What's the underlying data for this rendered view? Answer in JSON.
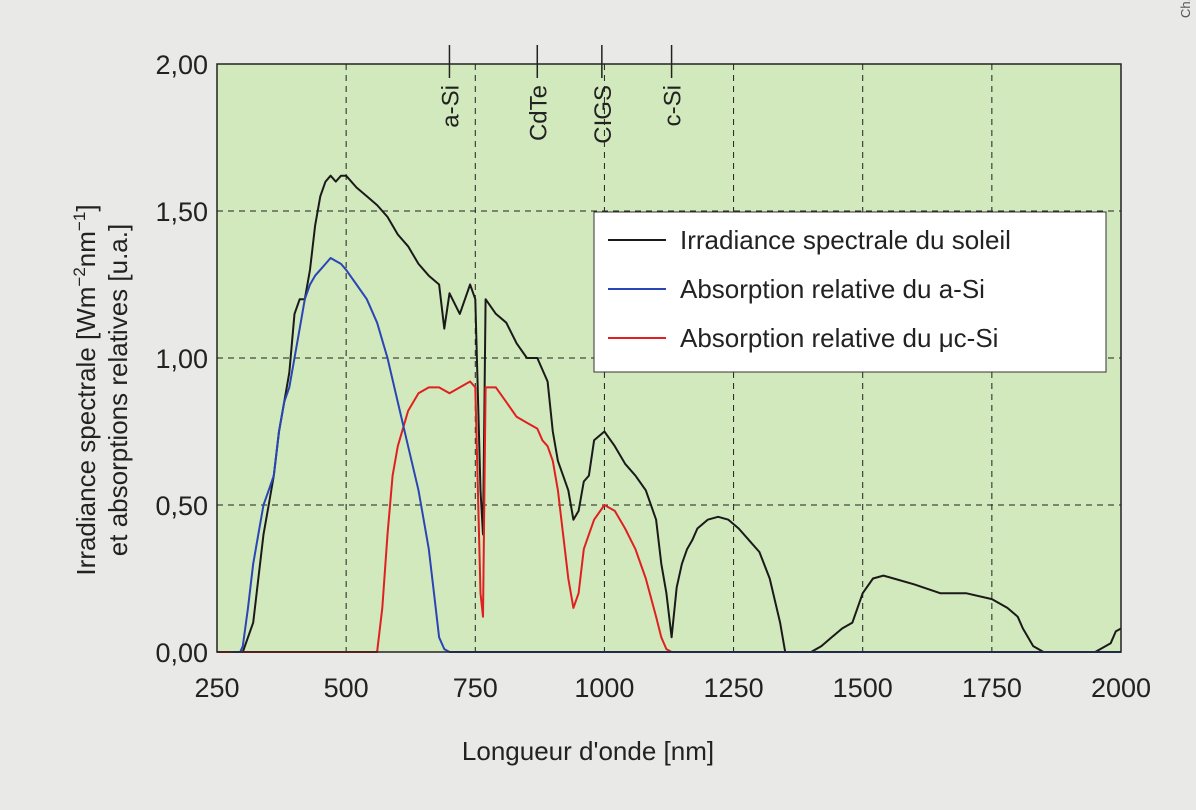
{
  "edge_text": "Ch. Elliott",
  "chart_data": {
    "type": "line",
    "xlabel": "Longueur d'onde [nm]",
    "ylabel_line1": "Irradiance spectrale [Wm",
    "ylabel_sup1": "−2",
    "ylabel_mid": "nm",
    "ylabel_sup2": "−1",
    "ylabel_end": "]",
    "ylabel_line2": "et absorptions relatives [u.a.]",
    "xlim": [
      250,
      2000
    ],
    "ylim": [
      0,
      2
    ],
    "x_ticks": [
      250,
      500,
      750,
      1000,
      1250,
      1500,
      1750,
      2000
    ],
    "x_tick_labels": [
      "250",
      "500",
      "750",
      "1000",
      "1250",
      "1500",
      "1750",
      "2000"
    ],
    "y_ticks": [
      0,
      0.5,
      1,
      1.5,
      2
    ],
    "y_tick_labels": [
      "0,00",
      "0,50",
      "1,00",
      "1,50",
      "2,00"
    ],
    "grid": true,
    "legend_position": "right",
    "plot_background": "#d2e8bd",
    "markers": [
      {
        "label": "a-Si",
        "x": 700
      },
      {
        "label": "CdTe",
        "x": 870
      },
      {
        "label": "CIGS",
        "x": 995
      },
      {
        "label": "c-Si",
        "x": 1130
      }
    ],
    "series": [
      {
        "name": "Irradiance spectrale du soleil",
        "color": "#1a1a1a",
        "x": [
          280,
          300,
          320,
          340,
          350,
          360,
          370,
          380,
          390,
          400,
          410,
          420,
          430,
          440,
          450,
          460,
          470,
          480,
          490,
          500,
          520,
          540,
          560,
          580,
          600,
          620,
          640,
          660,
          680,
          690,
          700,
          720,
          740,
          750,
          760,
          765,
          770,
          790,
          810,
          830,
          850,
          870,
          890,
          900,
          910,
          920,
          930,
          940,
          950,
          960,
          970,
          980,
          1000,
          1020,
          1040,
          1060,
          1080,
          1100,
          1110,
          1120,
          1130,
          1140,
          1150,
          1160,
          1170,
          1180,
          1200,
          1220,
          1240,
          1260,
          1280,
          1300,
          1320,
          1340,
          1350,
          1360,
          1380,
          1400,
          1420,
          1440,
          1460,
          1480,
          1500,
          1520,
          1540,
          1560,
          1600,
          1650,
          1700,
          1750,
          1780,
          1800,
          1810,
          1830,
          1850,
          1900,
          1950,
          1980,
          1990,
          2000
        ],
        "y": [
          0,
          0,
          0.1,
          0.4,
          0.5,
          0.6,
          0.75,
          0.85,
          0.95,
          1.15,
          1.2,
          1.2,
          1.3,
          1.45,
          1.55,
          1.6,
          1.62,
          1.6,
          1.62,
          1.62,
          1.58,
          1.55,
          1.52,
          1.48,
          1.42,
          1.38,
          1.32,
          1.28,
          1.25,
          1.1,
          1.22,
          1.15,
          1.25,
          1.2,
          0.55,
          0.4,
          1.2,
          1.15,
          1.12,
          1.05,
          1.0,
          1.0,
          0.92,
          0.75,
          0.65,
          0.6,
          0.55,
          0.45,
          0.48,
          0.58,
          0.6,
          0.72,
          0.75,
          0.7,
          0.64,
          0.6,
          0.55,
          0.45,
          0.3,
          0.2,
          0.05,
          0.22,
          0.3,
          0.35,
          0.38,
          0.42,
          0.45,
          0.46,
          0.45,
          0.42,
          0.38,
          0.34,
          0.25,
          0.1,
          0,
          0,
          0,
          0,
          0.02,
          0.05,
          0.08,
          0.1,
          0.2,
          0.25,
          0.26,
          0.25,
          0.23,
          0.2,
          0.2,
          0.18,
          0.15,
          0.12,
          0.08,
          0.02,
          0,
          0,
          0,
          0.03,
          0.07,
          0.08
        ]
      },
      {
        "name": "Absorption relative du a-Si",
        "color": "#2a46b5",
        "x": [
          280,
          295,
          300,
          310,
          320,
          330,
          340,
          350,
          360,
          370,
          380,
          390,
          400,
          410,
          420,
          430,
          440,
          450,
          460,
          470,
          480,
          490,
          500,
          520,
          540,
          560,
          580,
          600,
          620,
          640,
          660,
          670,
          680,
          690,
          700,
          720,
          760,
          800,
          900,
          1000,
          1100,
          1150,
          1200,
          1300,
          1400,
          1500,
          1600,
          1700,
          1800,
          1900,
          2000
        ],
        "y": [
          0,
          0,
          0.02,
          0.15,
          0.3,
          0.4,
          0.5,
          0.55,
          0.6,
          0.75,
          0.85,
          0.9,
          1.0,
          1.1,
          1.2,
          1.25,
          1.28,
          1.3,
          1.32,
          1.34,
          1.33,
          1.32,
          1.3,
          1.25,
          1.2,
          1.12,
          1.0,
          0.85,
          0.7,
          0.55,
          0.35,
          0.2,
          0.05,
          0.01,
          0,
          0,
          0,
          0,
          0,
          0,
          0,
          0,
          0,
          0,
          0,
          0,
          0,
          0,
          0,
          0,
          0
        ]
      },
      {
        "name": "Absorption relative du μc-Si",
        "color": "#e02020",
        "x": [
          250,
          400,
          500,
          560,
          570,
          580,
          590,
          600,
          620,
          640,
          660,
          680,
          700,
          720,
          740,
          750,
          760,
          765,
          770,
          790,
          810,
          830,
          850,
          870,
          880,
          890,
          900,
          910,
          920,
          930,
          940,
          950,
          960,
          970,
          980,
          1000,
          1020,
          1040,
          1060,
          1080,
          1100,
          1110,
          1120,
          1130,
          1140,
          1200,
          1300,
          1400,
          1500,
          1600,
          1700,
          1800,
          1900,
          2000
        ],
        "y": [
          0,
          0,
          0,
          0,
          0.15,
          0.4,
          0.6,
          0.7,
          0.82,
          0.88,
          0.9,
          0.9,
          0.88,
          0.9,
          0.92,
          0.9,
          0.2,
          0.12,
          0.9,
          0.9,
          0.85,
          0.8,
          0.78,
          0.76,
          0.72,
          0.7,
          0.65,
          0.55,
          0.4,
          0.25,
          0.15,
          0.2,
          0.35,
          0.4,
          0.45,
          0.5,
          0.48,
          0.42,
          0.35,
          0.25,
          0.12,
          0.05,
          0.01,
          0,
          0,
          0,
          0,
          0,
          0,
          0,
          0,
          0,
          0,
          0
        ]
      }
    ]
  }
}
